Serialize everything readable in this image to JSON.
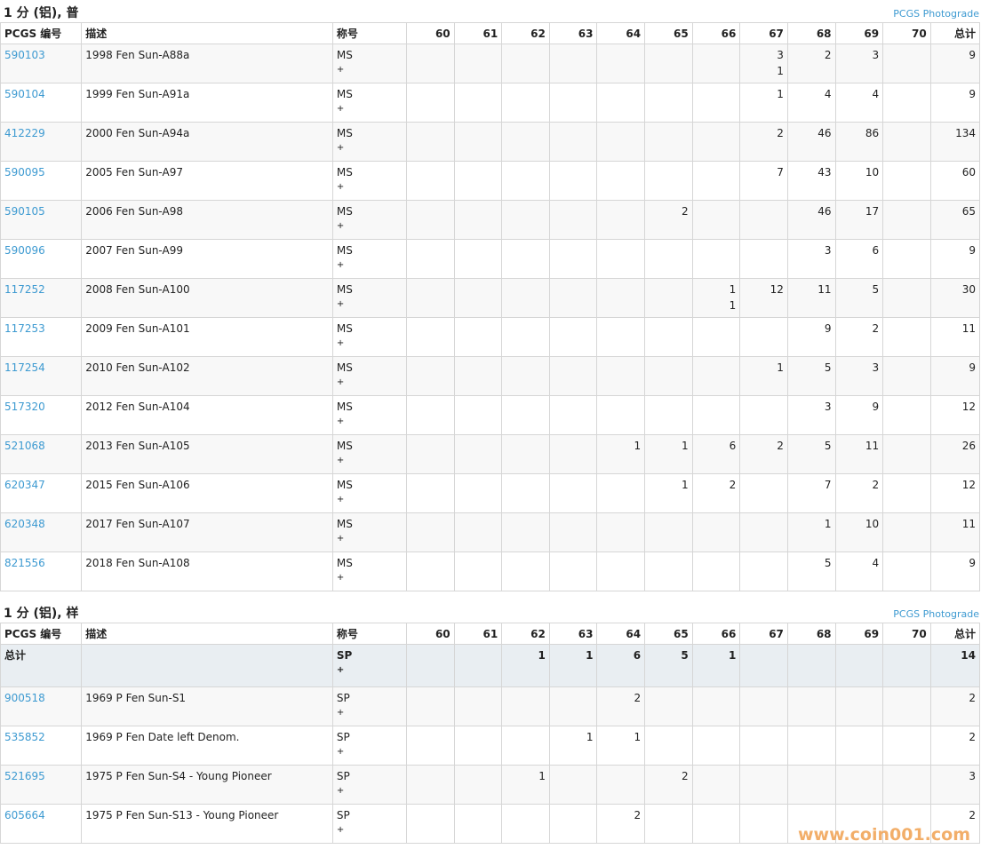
{
  "sections": [
    {
      "title": "1 分 (铝), 普",
      "link": "PCGS Photograde",
      "headers": [
        "PCGS 编号",
        "描述",
        "称号",
        "60",
        "61",
        "62",
        "63",
        "64",
        "65",
        "66",
        "67",
        "68",
        "69",
        "70",
        "总计"
      ],
      "rows": [
        {
          "id": "590103",
          "desc": "1998 Fen Sun-A88a",
          "des": "MS",
          "plus": "+",
          "grades": [
            null,
            null,
            null,
            null,
            null,
            null,
            null,
            [
              3,
              1
            ],
            [
              2
            ],
            [
              3
            ],
            null
          ],
          "total": 9
        },
        {
          "id": "590104",
          "desc": "1999 Fen Sun-A91a",
          "des": "MS",
          "plus": "+",
          "grades": [
            null,
            null,
            null,
            null,
            null,
            null,
            null,
            [
              1
            ],
            [
              4
            ],
            [
              4
            ],
            null
          ],
          "total": 9
        },
        {
          "id": "412229",
          "desc": "2000 Fen Sun-A94a",
          "des": "MS",
          "plus": "+",
          "grades": [
            null,
            null,
            null,
            null,
            null,
            null,
            null,
            [
              2
            ],
            [
              46
            ],
            [
              86
            ],
            null
          ],
          "total": 134
        },
        {
          "id": "590095",
          "desc": "2005 Fen Sun-A97",
          "des": "MS",
          "plus": "+",
          "grades": [
            null,
            null,
            null,
            null,
            null,
            null,
            null,
            [
              7
            ],
            [
              43
            ],
            [
              10
            ],
            null
          ],
          "total": 60
        },
        {
          "id": "590105",
          "desc": "2006 Fen Sun-A98",
          "des": "MS",
          "plus": "+",
          "grades": [
            null,
            null,
            null,
            null,
            null,
            [
              2
            ],
            null,
            null,
            [
              46
            ],
            [
              17
            ],
            null
          ],
          "total": 65
        },
        {
          "id": "590096",
          "desc": "2007 Fen Sun-A99",
          "des": "MS",
          "plus": "+",
          "grades": [
            null,
            null,
            null,
            null,
            null,
            null,
            null,
            null,
            [
              3
            ],
            [
              6
            ],
            null
          ],
          "total": 9
        },
        {
          "id": "117252",
          "desc": "2008 Fen Sun-A100",
          "des": "MS",
          "plus": "+",
          "grades": [
            null,
            null,
            null,
            null,
            null,
            null,
            [
              1,
              1
            ],
            [
              12
            ],
            [
              11
            ],
            [
              5
            ],
            null
          ],
          "total": 30
        },
        {
          "id": "117253",
          "desc": "2009 Fen Sun-A101",
          "des": "MS",
          "plus": "+",
          "grades": [
            null,
            null,
            null,
            null,
            null,
            null,
            null,
            null,
            [
              9
            ],
            [
              2
            ],
            null
          ],
          "total": 11
        },
        {
          "id": "117254",
          "desc": "2010 Fen Sun-A102",
          "des": "MS",
          "plus": "+",
          "grades": [
            null,
            null,
            null,
            null,
            null,
            null,
            null,
            [
              1
            ],
            [
              5
            ],
            [
              3
            ],
            null
          ],
          "total": 9
        },
        {
          "id": "517320",
          "desc": "2012 Fen Sun-A104",
          "des": "MS",
          "plus": "+",
          "grades": [
            null,
            null,
            null,
            null,
            null,
            null,
            null,
            null,
            [
              3
            ],
            [
              9
            ],
            null
          ],
          "total": 12
        },
        {
          "id": "521068",
          "desc": "2013 Fen Sun-A105",
          "des": "MS",
          "plus": "+",
          "grades": [
            null,
            null,
            null,
            null,
            [
              1
            ],
            [
              1
            ],
            [
              6
            ],
            [
              2
            ],
            [
              5
            ],
            [
              11
            ],
            null
          ],
          "total": 26
        },
        {
          "id": "620347",
          "desc": "2015 Fen Sun-A106",
          "des": "MS",
          "plus": "+",
          "grades": [
            null,
            null,
            null,
            null,
            null,
            [
              1
            ],
            [
              2
            ],
            null,
            [
              7
            ],
            [
              2
            ],
            null
          ],
          "total": 12
        },
        {
          "id": "620348",
          "desc": "2017 Fen Sun-A107",
          "des": "MS",
          "plus": "+",
          "grades": [
            null,
            null,
            null,
            null,
            null,
            null,
            null,
            null,
            [
              1
            ],
            [
              10
            ],
            null
          ],
          "total": 11
        },
        {
          "id": "821556",
          "desc": "2018 Fen Sun-A108",
          "des": "MS",
          "plus": "+",
          "grades": [
            null,
            null,
            null,
            null,
            null,
            null,
            null,
            null,
            [
              5
            ],
            [
              4
            ],
            null
          ],
          "total": 9
        }
      ]
    },
    {
      "title": "1 分 (铝), 样",
      "link": "PCGS Photograde",
      "headers": [
        "PCGS 编号",
        "描述",
        "称号",
        "60",
        "61",
        "62",
        "63",
        "64",
        "65",
        "66",
        "67",
        "68",
        "69",
        "70",
        "总计"
      ],
      "summary": {
        "label": "总计",
        "des": "SP",
        "plus": "+",
        "grades": [
          null,
          null,
          [
            1
          ],
          [
            1
          ],
          [
            6
          ],
          [
            5
          ],
          [
            1
          ],
          null,
          null,
          null,
          null
        ],
        "total": 14
      },
      "rows": [
        {
          "id": "900518",
          "desc": "1969 P Fen Sun-S1",
          "des": "SP",
          "plus": "+",
          "grades": [
            null,
            null,
            null,
            null,
            [
              2
            ],
            null,
            null,
            null,
            null,
            null,
            null
          ],
          "total": 2
        },
        {
          "id": "535852",
          "desc": "1969 P Fen Date left Denom.",
          "des": "SP",
          "plus": "+",
          "grades": [
            null,
            null,
            null,
            [
              1
            ],
            [
              1
            ],
            null,
            null,
            null,
            null,
            null,
            null
          ],
          "total": 2
        },
        {
          "id": "521695",
          "desc": "1975 P Fen Sun-S4 - Young Pioneer",
          "des": "SP",
          "plus": "+",
          "grades": [
            null,
            null,
            [
              1
            ],
            null,
            null,
            [
              2
            ],
            null,
            null,
            null,
            null,
            null
          ],
          "total": 3
        },
        {
          "id": "605664",
          "desc": "1975 P Fen Sun-S13 - Young Pioneer",
          "des": "SP",
          "plus": "+",
          "grades": [
            null,
            null,
            null,
            null,
            [
              2
            ],
            null,
            null,
            null,
            null,
            null,
            null
          ],
          "total": 2
        }
      ]
    }
  ],
  "watermark": "www.coin001.com"
}
